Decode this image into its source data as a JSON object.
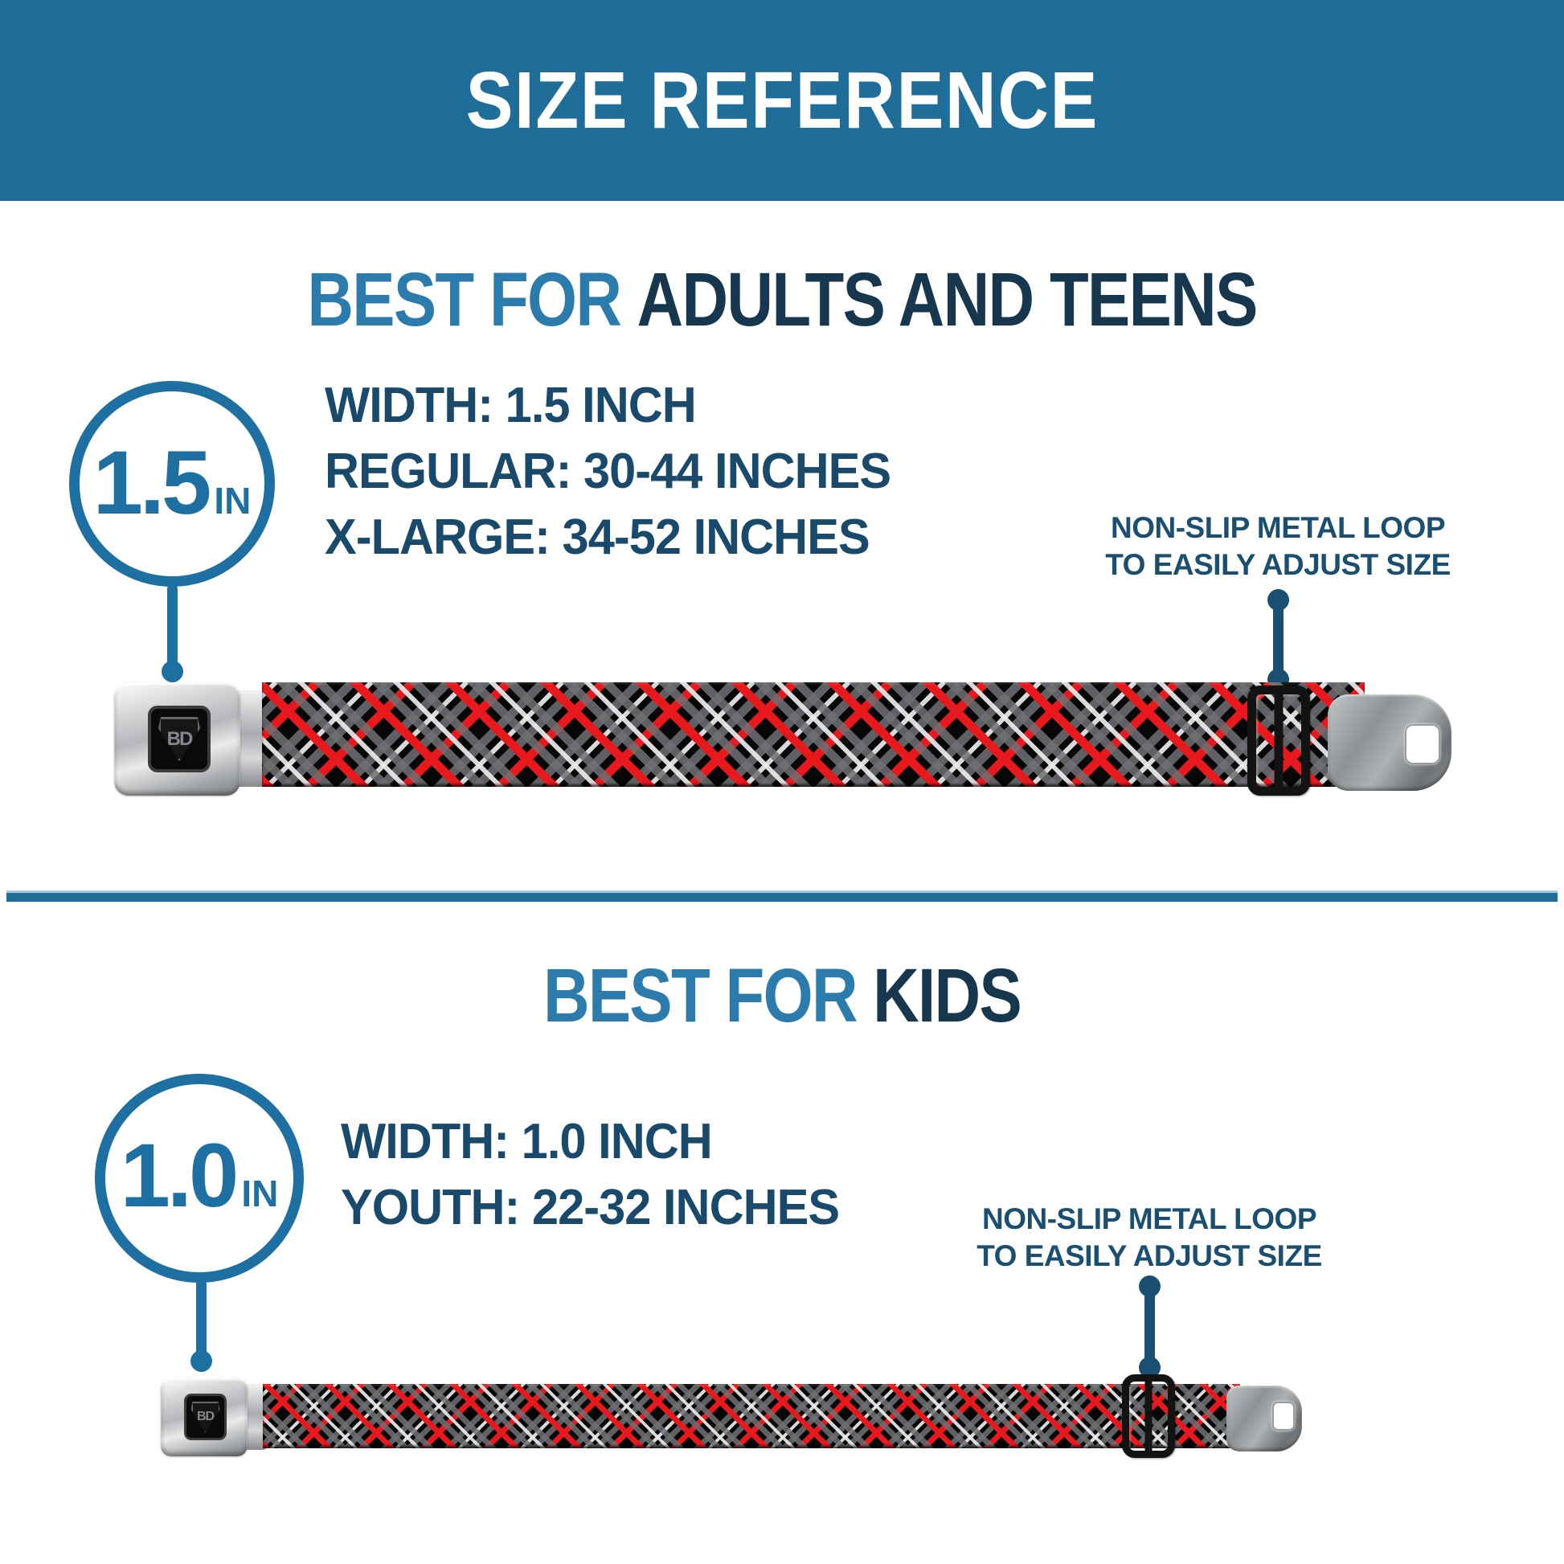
{
  "banner": {
    "title": "SIZE REFERENCE"
  },
  "sections": {
    "adults": {
      "heading": {
        "accent": "BEST FOR",
        "rest": "ADULTS AND TEENS"
      },
      "badge": {
        "value": "1.5",
        "unit": "IN"
      },
      "specs": {
        "line1": "WIDTH: 1.5 INCH",
        "line2": "REGULAR: 30-44 INCHES",
        "line3": "X-LARGE: 34-52 INCHES"
      },
      "callout": {
        "line1": "NON-SLIP METAL LOOP",
        "line2": "TO EASILY ADJUST SIZE"
      },
      "buckle_logo": "BD"
    },
    "kids": {
      "heading": {
        "accent": "BEST FOR",
        "rest": "KIDS"
      },
      "badge": {
        "value": "1.0",
        "unit": "IN"
      },
      "specs": {
        "line1": "WIDTH: 1.0 INCH",
        "line2": "YOUTH: 22-32 INCHES"
      },
      "callout": {
        "line1": "NON-SLIP METAL LOOP",
        "line2": "TO EASILY ADJUST SIZE"
      },
      "buckle_logo": "BD"
    }
  },
  "colors": {
    "banner_bg": "#1e6e99",
    "accent_blue": "#2b7cad",
    "dark_navy": "#16374e",
    "spec_navy": "#1a4a6b",
    "callout_navy": "#1b4f72",
    "circle_blue": "#1e6fa2",
    "plaid_red": "#e8191d",
    "plaid_gray": "#6e7073",
    "plaid_white": "#e9eaec",
    "strap_black": "#070707",
    "loop_black": "#131313"
  }
}
